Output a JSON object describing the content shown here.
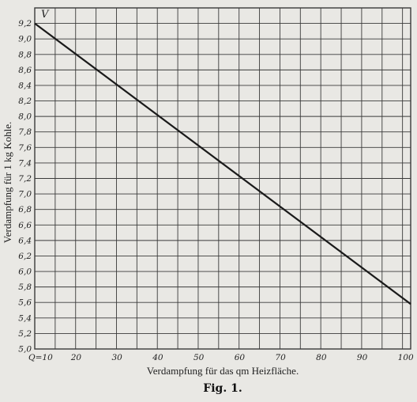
{
  "chart_data": {
    "type": "line",
    "xlabel": "Verdampfung für das qm Heizfläche.",
    "ylabel": "Verdampfung für 1 kg Kohle.",
    "y_axis_symbol": "V",
    "caption": "Fig. 1.",
    "x_tick_labels": [
      "Q=10",
      "20",
      "30",
      "40",
      "50",
      "60",
      "70",
      "80",
      "90",
      "100"
    ],
    "y_tick_labels": [
      "5,0",
      "5,2",
      "5,4",
      "5,6",
      "5,8",
      "6,0",
      "6,2",
      "6,4",
      "6,6",
      "6,8",
      "7,0",
      "7,2",
      "7,4",
      "7,6",
      "7,8",
      "8,0",
      "8,2",
      "8,4",
      "8,6",
      "8,8",
      "9,0",
      "9,2"
    ],
    "xlim": [
      10,
      102
    ],
    "ylim": [
      5.0,
      9.4
    ],
    "grid": true,
    "series": [
      {
        "x": [
          10,
          102
        ],
        "y": [
          9.2,
          5.58
        ]
      }
    ],
    "colors": {
      "line": "#1a1a1a",
      "grid": "#3a3a3a",
      "paper": "#e9e8e4"
    }
  }
}
